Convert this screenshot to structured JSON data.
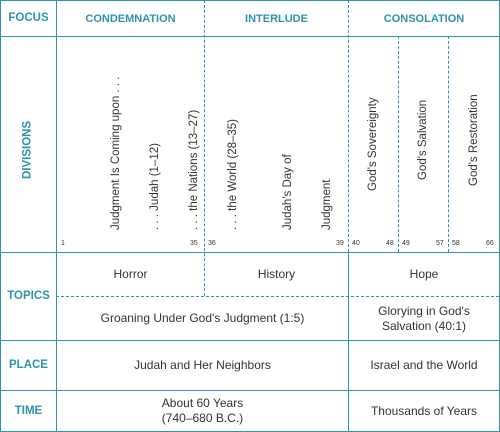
{
  "row_labels": {
    "focus": "FOCUS",
    "divisions": "DIVISIONS",
    "topics": "TOPICS",
    "place": "PLACE",
    "time": "TIME"
  },
  "focus": {
    "condemnation": "CONDEMNATION",
    "interlude": "INTERLUDE",
    "consolation": "CONSOLATION"
  },
  "divisions": {
    "judgment": [
      "Judgment Is Coming upon . . .",
      ". . . Judah (1–12)",
      ". . . the Nations (13–27)",
      ". . . the World (28–35)"
    ],
    "judah_day": [
      "Judah's Day of",
      "Judgment"
    ],
    "sovereignty": "God's Sovereignty",
    "salvation": "God's Salvation",
    "restoration": "God's Restoration",
    "chapters": {
      "c1": "1",
      "c35": "35",
      "c36": "36",
      "c39": "39",
      "c40": "40",
      "c48": "48",
      "c49": "49",
      "c57": "57",
      "c58": "58",
      "c66": "66"
    }
  },
  "topics": {
    "horror": "Horror",
    "history": "History",
    "hope": "Hope",
    "groaning": "Groaning Under God's Judgment (1:5)",
    "glorying": "Glorying in God's Salvation (40:1)"
  },
  "place": {
    "judah": "Judah and Her Neighbors",
    "israel": "Israel and the World"
  },
  "time": {
    "years60": "About 60 Years",
    "years60_dates": "(740–680 B.C.)",
    "thousands": "Thousands of Years"
  },
  "colors": {
    "accent": "#2e93ad",
    "text": "#333333"
  }
}
